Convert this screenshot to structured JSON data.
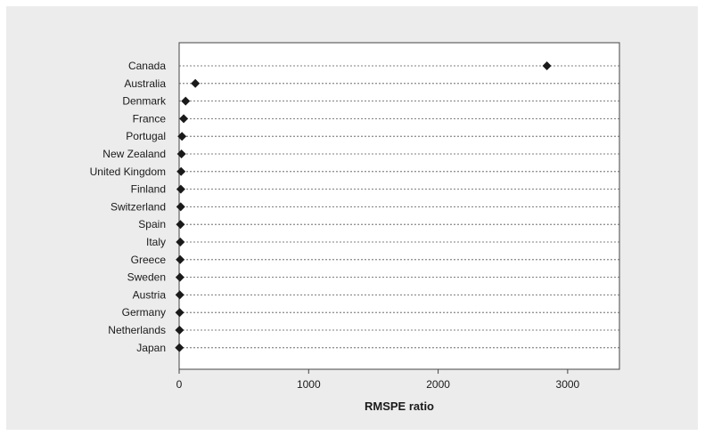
{
  "chart_data": {
    "type": "scatter",
    "title": "",
    "xlabel": "RMSPE ratio",
    "ylabel": "",
    "xlim": [
      0,
      3400
    ],
    "xticks": [
      0,
      1000,
      2000,
      3000
    ],
    "grid": "horizontal dashed per category",
    "marker": "diamond",
    "colors": {
      "marker": "#1a1a1a",
      "background": "#ececec",
      "plot_area": "#ffffff"
    },
    "categories": [
      "Canada",
      "Australia",
      "Denmark",
      "France",
      "Portugal",
      "New Zealand",
      "United Kingdom",
      "Finland",
      "Switzerland",
      "Spain",
      "Italy",
      "Greece",
      "Sweden",
      "Austria",
      "Germany",
      "Netherlands",
      "Japan"
    ],
    "values": [
      2840,
      125,
      50,
      35,
      22,
      18,
      15,
      13,
      12,
      10,
      9,
      8,
      6,
      5,
      4,
      3,
      2
    ]
  }
}
